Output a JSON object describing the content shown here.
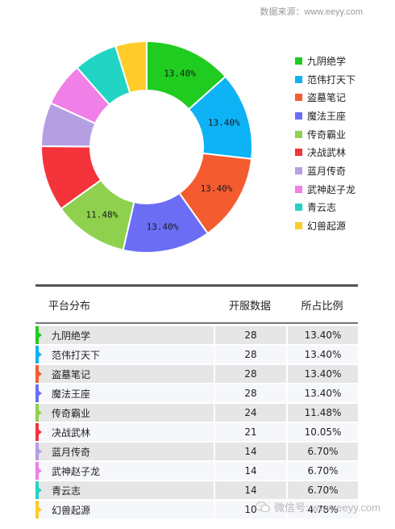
{
  "source_text": "数据来源：www.eeyy.com",
  "watermark_text": "微信号: www.eeyy.com",
  "chart_data": {
    "type": "pie",
    "donut": true,
    "categories": [
      "九阴绝学",
      "范伟打天下",
      "盗墓笔记",
      "魔法王座",
      "传奇霸业",
      "决战武林",
      "蓝月传奇",
      "武神赵子龙",
      "青云志",
      "幻兽起源"
    ],
    "values": [
      13.4,
      13.4,
      13.4,
      13.4,
      11.48,
      10.05,
      6.7,
      6.7,
      6.7,
      4.78
    ],
    "slice_labels": [
      "13.40%",
      "13.40%",
      "13.40%",
      "13.40%",
      "11.48%",
      "",
      "",
      "",
      "",
      ""
    ],
    "colors": [
      "#1fcc1f",
      "#0db3f5",
      "#f45c30",
      "#6b6ef5",
      "#8fd14f",
      "#f5333a",
      "#b59fe3",
      "#f07fe8",
      "#22d4c4",
      "#ffcc2a"
    ],
    "legend_placement": "right"
  },
  "legend": [
    {
      "label": "九阴绝学",
      "color": "#1fcc1f"
    },
    {
      "label": "范伟打天下",
      "color": "#0db3f5"
    },
    {
      "label": "盗墓笔记",
      "color": "#f45c30"
    },
    {
      "label": "魔法王座",
      "color": "#6b6ef5"
    },
    {
      "label": "传奇霸业",
      "color": "#8fd14f"
    },
    {
      "label": "决战武林",
      "color": "#f5333a"
    },
    {
      "label": "蓝月传奇",
      "color": "#b59fe3"
    },
    {
      "label": "武神赵子龙",
      "color": "#f07fe8"
    },
    {
      "label": "青云志",
      "color": "#22d4c4"
    },
    {
      "label": "幻兽起源",
      "color": "#ffcc2a"
    }
  ],
  "table": {
    "headers": [
      "平台分布",
      "开服数据",
      "所占比例"
    ],
    "rows": [
      {
        "name": "九阴绝学",
        "count": "28",
        "pct": "13.40%",
        "color": "#1fcc1f"
      },
      {
        "name": "范伟打天下",
        "count": "28",
        "pct": "13.40%",
        "color": "#0db3f5"
      },
      {
        "name": "盗墓笔记",
        "count": "28",
        "pct": "13.40%",
        "color": "#f45c30"
      },
      {
        "name": "魔法王座",
        "count": "28",
        "pct": "13.40%",
        "color": "#6b6ef5"
      },
      {
        "name": "传奇霸业",
        "count": "24",
        "pct": "11.48%",
        "color": "#8fd14f"
      },
      {
        "name": "决战武林",
        "count": "21",
        "pct": "10.05%",
        "color": "#f5333a"
      },
      {
        "name": "蓝月传奇",
        "count": "14",
        "pct": "6.70%",
        "color": "#b59fe3"
      },
      {
        "name": "武神赵子龙",
        "count": "14",
        "pct": "6.70%",
        "color": "#f07fe8"
      },
      {
        "name": "青云志",
        "count": "14",
        "pct": "6.70%",
        "color": "#22d4c4"
      },
      {
        "name": "幻兽起源",
        "count": "10",
        "pct": "4.78%",
        "color": "#ffcc2a"
      }
    ]
  }
}
